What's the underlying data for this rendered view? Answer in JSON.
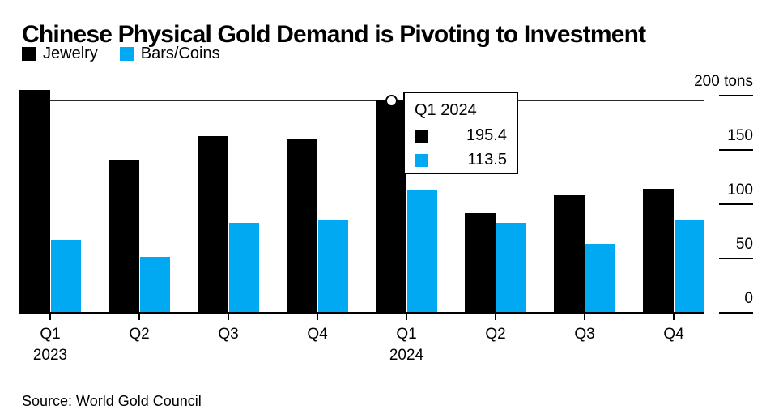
{
  "title": "Chinese Physical Gold Demand is Pivoting to Investment",
  "legend": [
    {
      "label": "Jewelry",
      "color": "#000000"
    },
    {
      "label": "Bars/Coins",
      "color": "#00a9f2"
    }
  ],
  "tooltip": {
    "title": "Q1 2024",
    "rows": [
      {
        "series": "Jewelry",
        "color": "#000000",
        "value": "195.4"
      },
      {
        "series": "Bars/Coins",
        "color": "#00a9f2",
        "value": "113.5"
      }
    ]
  },
  "source": "Source: World Gold Council",
  "chart_data": {
    "type": "bar",
    "title": "Chinese Physical Gold Demand is Pivoting to Investment",
    "unit": "tons",
    "categories": [
      "Q1 2023",
      "Q2 2023",
      "Q3 2023",
      "Q4 2023",
      "Q1 2024",
      "Q2 2024",
      "Q3 2024",
      "Q4 2024"
    ],
    "x_tick_labels": [
      [
        "Q1",
        "2023"
      ],
      [
        "Q2"
      ],
      [
        "Q3"
      ],
      [
        "Q4"
      ],
      [
        "Q1",
        "2024"
      ],
      [
        "Q2"
      ],
      [
        "Q3"
      ],
      [
        "Q4"
      ]
    ],
    "series": [
      {
        "name": "Jewelry",
        "color": "#000000",
        "values": [
          205,
          140,
          162.5,
          160,
          195.4,
          91.5,
          108.5,
          114
        ]
      },
      {
        "name": "Bars/Coins",
        "color": "#00a9f2",
        "values": [
          67.5,
          51.5,
          83,
          85,
          113.5,
          82.5,
          63.5,
          86
        ]
      }
    ],
    "y_ticks": [
      {
        "value": 200,
        "label": "200 tons"
      },
      {
        "value": 150,
        "label": "150"
      },
      {
        "value": 100,
        "label": "100"
      },
      {
        "value": 50,
        "label": "50"
      },
      {
        "value": 0,
        "label": "0"
      }
    ],
    "ylim": [
      0,
      210
    ],
    "grid": false,
    "legend_position": "top-left",
    "highlight": {
      "category": "Q1 2024",
      "category_index": 4,
      "series_values": {
        "Jewelry": 195.4,
        "Bars/Coins": 113.5
      },
      "tracking_line_value": 195.4
    }
  }
}
